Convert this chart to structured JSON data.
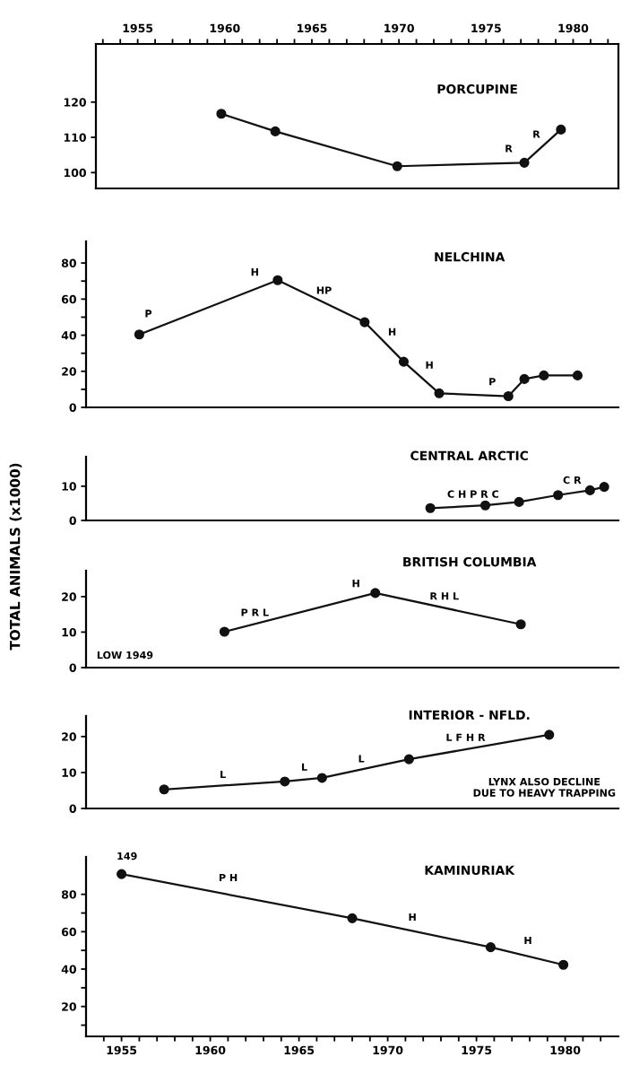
{
  "chart_data": [
    {
      "type": "line",
      "title": "PORCUPINE",
      "color": "#111111",
      "marker": "circle",
      "x": [
        1959.8,
        1962.9,
        1969.9,
        1977.2,
        1979.3
      ],
      "values": [
        116.7,
        111.7,
        101.8,
        102.8,
        112.2
      ],
      "xlim": [
        1952.6,
        1982.6
      ],
      "xticks": [
        {
          "value": 1953,
          "label": null
        },
        {
          "value": 1954,
          "label": null
        },
        1955,
        {
          "value": 1956,
          "label": null
        },
        {
          "value": 1957,
          "label": null
        },
        {
          "value": 1958,
          "label": null
        },
        {
          "value": 1959,
          "label": null
        },
        1960,
        {
          "value": 1961,
          "label": null
        },
        {
          "value": 1962,
          "label": null
        },
        {
          "value": 1963,
          "label": null
        },
        {
          "value": 1964,
          "label": null
        },
        1965,
        {
          "value": 1966,
          "label": null
        },
        {
          "value": 1967,
          "label": null
        },
        {
          "value": 1968,
          "label": null
        },
        {
          "value": 1969,
          "label": null
        },
        1970,
        {
          "value": 1971,
          "label": null
        },
        {
          "value": 1972,
          "label": null
        },
        {
          "value": 1973,
          "label": null
        },
        {
          "value": 1974,
          "label": null
        },
        1975,
        {
          "value": 1976,
          "label": null
        },
        {
          "value": 1977,
          "label": null
        },
        {
          "value": 1978,
          "label": null
        },
        {
          "value": 1979,
          "label": null
        },
        1980,
        {
          "value": 1981,
          "label": null
        },
        {
          "value": 1982,
          "label": null
        }
      ],
      "ylim": [
        95.5,
        136.5
      ],
      "yticks": [
        100,
        110,
        120
      ],
      "annotations": [
        "R",
        "R"
      ]
    },
    {
      "type": "line",
      "title": "NELCHINA",
      "color": "#111111",
      "marker": "circle",
      "tick_labels": "y",
      "x": [
        1956.0,
        1963.8,
        1968.7,
        1970.9,
        1972.9,
        1976.8,
        1977.7,
        1978.8,
        1980.7
      ],
      "values": [
        40.4,
        70.5,
        47.2,
        25.3,
        7.8,
        6.2,
        15.7,
        17.7,
        17.7
      ],
      "xlim": [
        1953,
        1983
      ],
      "ylim": [
        0,
        92
      ],
      "yticks": [
        0,
        {
          "value": 10,
          "label": null
        },
        20,
        {
          "value": 30,
          "label": null
        },
        40,
        {
          "value": 50,
          "label": null
        },
        60,
        {
          "value": 70,
          "label": null
        },
        80
      ],
      "annotations": [
        "P",
        "H",
        "HP",
        "H",
        "H",
        "P"
      ]
    },
    {
      "type": "line",
      "title": "CENTRAL ARCTIC",
      "color": "#111111",
      "marker": "circle",
      "tick_labels": "y",
      "x": [
        1972.4,
        1975.5,
        1977.4,
        1979.6,
        1981.4,
        1982.2
      ],
      "values": [
        3.6,
        4.4,
        5.4,
        7.4,
        8.8,
        9.8
      ],
      "xlim": [
        1953,
        1983
      ],
      "ylim": [
        0,
        18.6
      ],
      "yticks": [
        0,
        10
      ],
      "annotations": [
        "C H P R C",
        "C R"
      ]
    },
    {
      "type": "line",
      "title": "BRITISH COLUMBIA",
      "ylabel": "TOTAL ANIMALS (x1000)",
      "color": "#111111",
      "marker": "circle",
      "tick_labels": "y",
      "x": [
        1960.8,
        1969.3,
        1977.5
      ],
      "values": [
        10.1,
        21.0,
        12.2
      ],
      "xlim": [
        1953,
        1983
      ],
      "ylim": [
        0,
        27.3
      ],
      "yticks": [
        0,
        10,
        20
      ],
      "annotations": [
        "P R L",
        "H",
        "R H L",
        "LOW 1949"
      ]
    },
    {
      "type": "line",
      "title": "INTERIOR - NFLD.",
      "color": "#111111",
      "marker": "circle",
      "tick_labels": "y",
      "x": [
        1957.4,
        1964.2,
        1966.3,
        1971.2,
        1979.1
      ],
      "values": [
        5.3,
        7.5,
        8.5,
        13.7,
        20.5
      ],
      "xlim": [
        1953,
        1983
      ],
      "ylim": [
        0,
        25.7
      ],
      "yticks": [
        0,
        10,
        20
      ],
      "annotations": [
        "L",
        "L",
        "L",
        "L F H R",
        "LYNX ALSO DECLINE\nDUE TO HEAVY TRAPPING"
      ]
    },
    {
      "type": "line",
      "title": "KAMINURIAK",
      "color": "#111111",
      "marker": "circle",
      "x": [
        1955.0,
        1968.0,
        1975.8,
        1979.9
      ],
      "values": [
        90.8,
        67.2,
        51.7,
        42.3
      ],
      "xlim": [
        1953,
        1983
      ],
      "xticks": [
        {
          "value": 1954,
          "label": null
        },
        1955,
        {
          "value": 1956,
          "label": null
        },
        {
          "value": 1957,
          "label": null
        },
        {
          "value": 1958,
          "label": null
        },
        {
          "value": 1959,
          "label": null
        },
        1960,
        {
          "value": 1961,
          "label": null
        },
        {
          "value": 1962,
          "label": null
        },
        {
          "value": 1963,
          "label": null
        },
        {
          "value": 1964,
          "label": null
        },
        1965,
        {
          "value": 1966,
          "label": null
        },
        {
          "value": 1967,
          "label": null
        },
        {
          "value": 1968,
          "label": null
        },
        {
          "value": 1969,
          "label": null
        },
        1970,
        {
          "value": 1971,
          "label": null
        },
        {
          "value": 1972,
          "label": null
        },
        {
          "value": 1973,
          "label": null
        },
        {
          "value": 1974,
          "label": null
        },
        1975,
        {
          "value": 1976,
          "label": null
        },
        {
          "value": 1977,
          "label": null
        },
        {
          "value": 1978,
          "label": null
        },
        {
          "value": 1979,
          "label": null
        },
        1980,
        {
          "value": 1981,
          "label": null
        },
        {
          "value": 1982,
          "label": null
        }
      ],
      "ylim": [
        4,
        100
      ],
      "yticks": [
        {
          "value": 10,
          "label": null
        },
        20,
        {
          "value": 30,
          "label": null
        },
        40,
        {
          "value": 50,
          "label": null
        },
        60,
        {
          "value": 70,
          "label": null
        },
        80
      ],
      "annotations": [
        "149",
        "P H",
        "H",
        "H"
      ]
    }
  ]
}
